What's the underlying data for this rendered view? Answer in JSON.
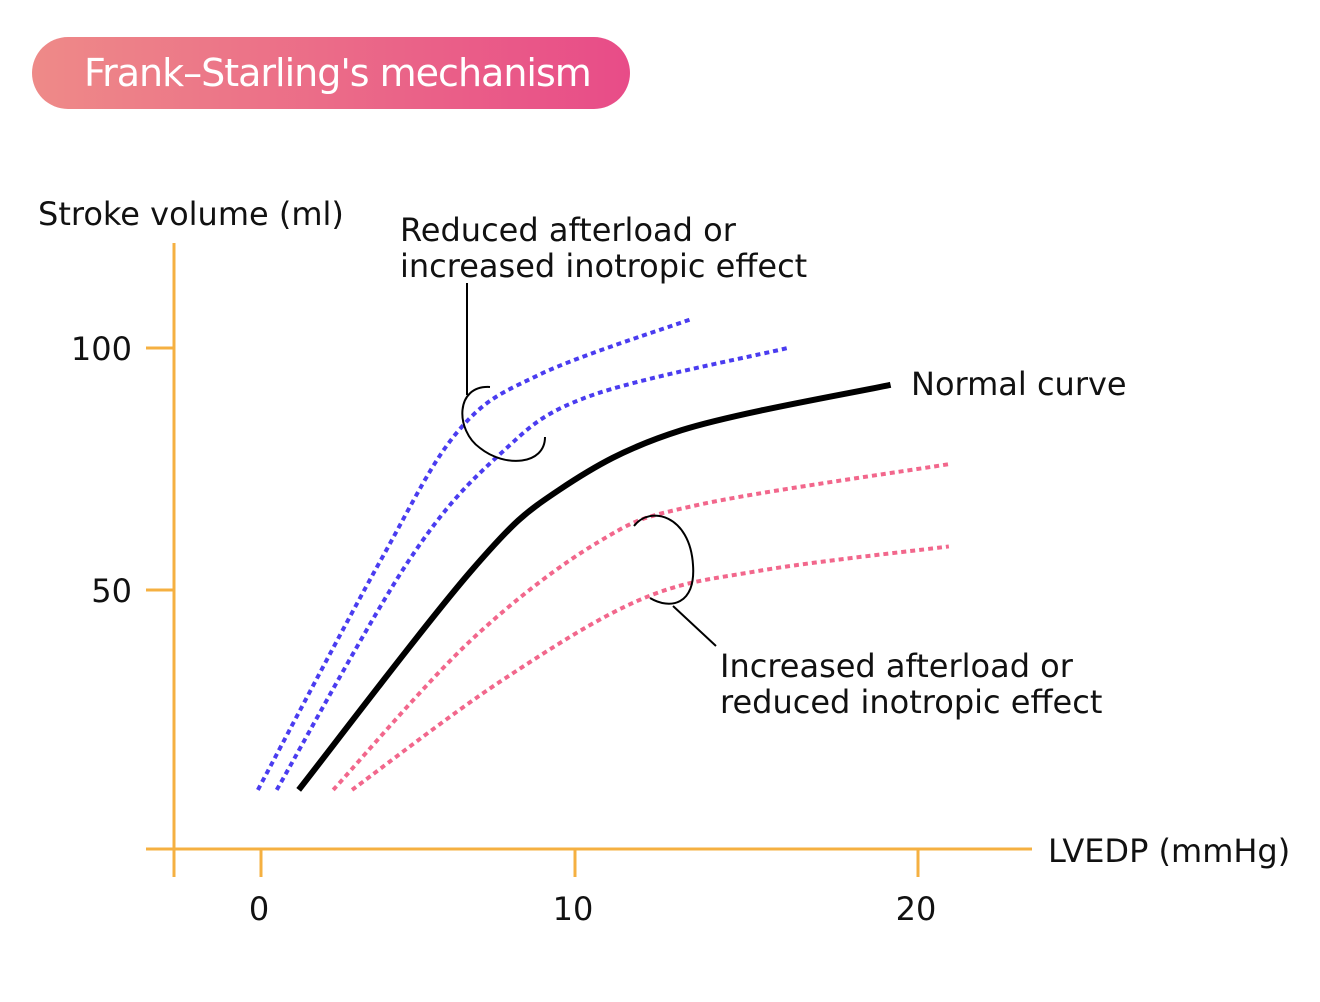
{
  "title": "Frank–Starling's mechanism",
  "chart_data": {
    "type": "line",
    "title": "Frank–Starling's mechanism",
    "xlabel": "LVEDP (mmHg)",
    "ylabel": "Stroke volume (ml)",
    "x_ticks": [
      0,
      10,
      20
    ],
    "y_ticks": [
      50,
      100
    ],
    "grid": false,
    "colors": {
      "axis": "#f5b041",
      "normal": "#000000",
      "increased": "#4a3cf0",
      "decreased": "#f2678c"
    },
    "series": [
      {
        "name": "Normal curve",
        "style": "solid",
        "color": "#000000",
        "x": [
          1.2,
          6.7,
          9.5,
          13.1,
          19.2
        ],
        "y": [
          8.7,
          54,
          70.7,
          83,
          92.4
        ]
      },
      {
        "style": "dotted",
        "color": "#4a3cf0",
        "x": [
          -0.1,
          3.8,
          6.3,
          8.9,
          13.4
        ],
        "y": [
          8.7,
          56,
          83,
          94.6,
          106
        ]
      },
      {
        "style": "dotted",
        "color": "#4a3cf0",
        "x": [
          0.5,
          4.7,
          7.6,
          10.4,
          16.2
        ],
        "y": [
          8.7,
          56,
          78,
          90,
          100
        ]
      },
      {
        "style": "dotted",
        "color": "#f2678c",
        "x": [
          2.3,
          6.7,
          10.7,
          13.6,
          20.9
        ],
        "y": [
          8.7,
          39.7,
          60,
          67.6,
          76
        ]
      },
      {
        "style": "dotted",
        "color": "#f2678c",
        "x": [
          2.9,
          7.6,
          11.9,
          15.4,
          20.9
        ],
        "y": [
          8.7,
          31,
          48,
          54,
          59
        ]
      }
    ],
    "annotations": {
      "upper_line1": "Reduced afterload or",
      "upper_line2": "increased inotropic effect",
      "lower_line1": "Increased afterload or",
      "lower_line2": "reduced inotropic effect"
    }
  }
}
